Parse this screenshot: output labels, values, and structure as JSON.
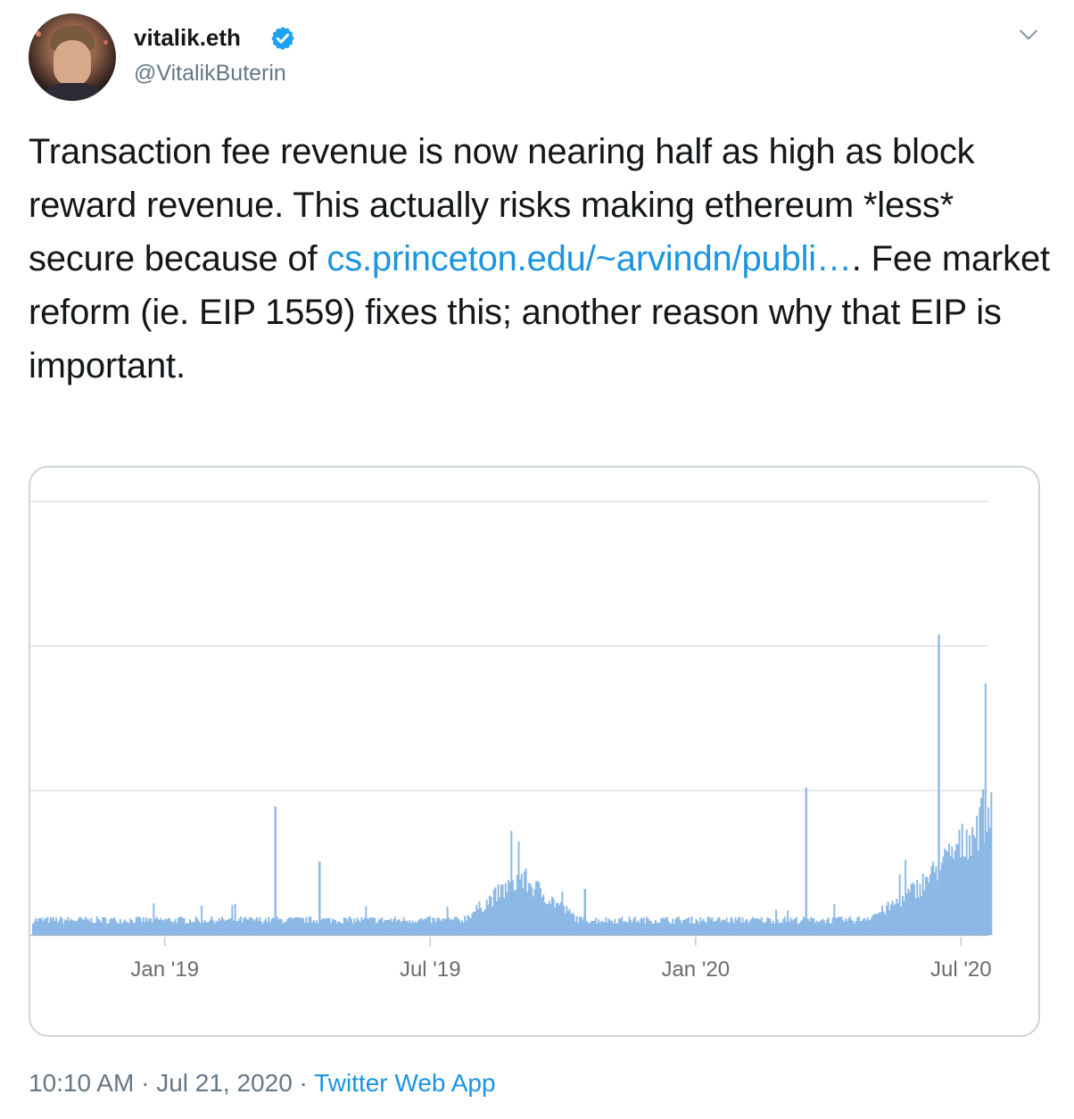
{
  "author": {
    "display_name": "vitalik.eth",
    "handle": "@VitalikButerin",
    "verified": true
  },
  "tweet": {
    "text_1": "Transaction fee revenue is now nearing half as high as block reward revenue. This actually risks making ethereum *less* secure because of ",
    "link": "cs.princeton.edu/~arvindn/publi…",
    "text_2": ". Fee market reform (ie. EIP 1559) fixes this; another reason why that EIP is important."
  },
  "meta": {
    "time": "10:10 AM",
    "separator_1": " · ",
    "date": "Jul 21, 2020",
    "separator_2": " · ",
    "app": "Twitter Web App"
  },
  "icons": {
    "verified": "verified-badge-icon",
    "menu": "chevron-down-icon"
  },
  "colors": {
    "link": "#1b95e0",
    "verified": "#1da1f2",
    "bars": "#8cb8e6",
    "secondary_text": "#657786"
  },
  "chart_data": {
    "type": "bar",
    "x_tick_labels": [
      "Jan '19",
      "Jul '19",
      "Jan '20",
      "Jul '20"
    ],
    "x_start": "2018-10",
    "x_end": "2020-07-21",
    "grid": true,
    "baseline_level": 0.1,
    "spikes": [
      {
        "date": "2019-03",
        "value": 0.89
      },
      {
        "date": "2019-04",
        "value": 0.51
      },
      {
        "date": "2019-10",
        "value": 0.32
      },
      {
        "date": "2020-03",
        "value": 1.02
      },
      {
        "date": "2020-06",
        "value": 2.08
      },
      {
        "date": "2020-07",
        "value": 1.01
      }
    ]
  }
}
